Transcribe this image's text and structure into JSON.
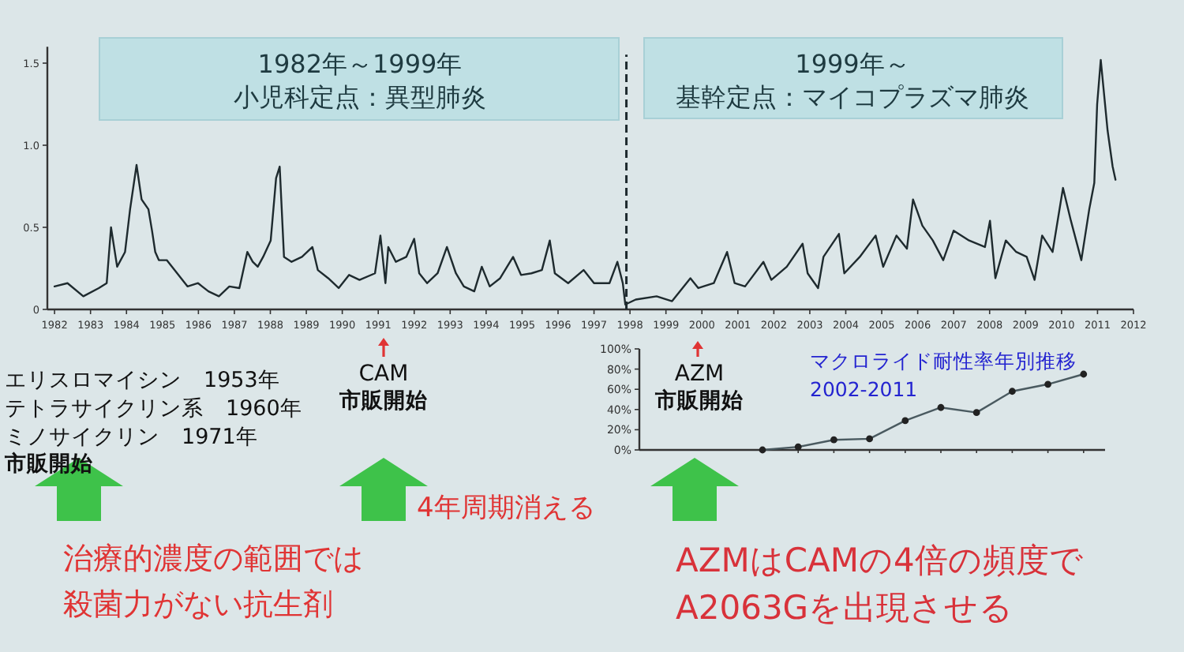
{
  "chart_data": [
    {
      "type": "line",
      "color": "#1e2a2e",
      "line_style": "solid",
      "x": [
        1982.5,
        1982.86,
        1983.3,
        1983.73,
        1983.95,
        1984.07,
        1984.24,
        1984.46,
        1984.6,
        1984.78,
        1984.92,
        1985.11,
        1985.21,
        1985.3,
        1985.4,
        1985.62,
        1985.91,
        1986.2,
        1986.49,
        1986.78,
        1987.07,
        1987.36,
        1987.64,
        1987.86,
        1988.01,
        1988.15,
        1988.3,
        1988.51,
        1988.66,
        1988.76,
        1988.88,
        1989.09,
        1989.38,
        1989.67,
        1989.82,
        1990.11,
        1990.4,
        1990.69,
        1990.98,
        1991.41,
        1991.56,
        1991.7,
        1991.78,
        1991.99,
        1992.28,
        1992.5,
        1992.64,
        1992.86,
        1993.15,
        1993.41,
        1993.66,
        1993.88,
        1994.17,
        1994.38,
        1994.6,
        1994.89,
        1995.25,
        1995.47,
        1995.76,
        1996.05,
        1996.27,
        1996.41,
        1996.78,
        1997.21,
        1997.5,
        1997.93,
        1998.15,
        1998.3,
        1998.37,
        1998.66,
        1999.24,
        1999.67,
        2000.18,
        2000.4,
        2000.83,
        2001.2,
        2001.41,
        2001.7,
        2002.21,
        2002.43,
        2002.86,
        2003.3,
        2003.44,
        2003.73,
        2003.88,
        2004.31,
        2004.46,
        2004.89,
        2005.33,
        2005.54,
        2005.91,
        2006.2,
        2006.37,
        2006.63,
        2006.92,
        2007.21,
        2007.5,
        2007.93,
        2008.37,
        2008.51,
        2008.66,
        2008.95,
        2009.24,
        2009.53,
        2009.75,
        2009.96,
        2010.25,
        2010.54,
        2010.76,
        2011.05,
        2011.27,
        2011.41,
        2011.49,
        2011.59,
        2011.78,
        2011.92,
        2012.0
      ],
      "values": [
        0.14,
        0.16,
        0.08,
        0.13,
        0.16,
        0.5,
        0.26,
        0.35,
        0.61,
        0.88,
        0.67,
        0.61,
        0.48,
        0.35,
        0.3,
        0.3,
        0.22,
        0.14,
        0.16,
        0.11,
        0.08,
        0.14,
        0.13,
        0.35,
        0.29,
        0.26,
        0.32,
        0.42,
        0.8,
        0.87,
        0.32,
        0.29,
        0.32,
        0.38,
        0.24,
        0.19,
        0.13,
        0.21,
        0.18,
        0.22,
        0.45,
        0.16,
        0.38,
        0.29,
        0.32,
        0.43,
        0.22,
        0.16,
        0.22,
        0.38,
        0.22,
        0.14,
        0.11,
        0.26,
        0.14,
        0.19,
        0.32,
        0.21,
        0.22,
        0.24,
        0.42,
        0.22,
        0.16,
        0.24,
        0.16,
        0.16,
        0.29,
        0.16,
        0.03,
        0.06,
        0.08,
        0.05,
        0.19,
        0.13,
        0.16,
        0.35,
        0.16,
        0.14,
        0.29,
        0.18,
        0.26,
        0.4,
        0.22,
        0.13,
        0.32,
        0.46,
        0.22,
        0.32,
        0.45,
        0.26,
        0.45,
        0.37,
        0.67,
        0.51,
        0.42,
        0.3,
        0.48,
        0.42,
        0.38,
        0.54,
        0.19,
        0.42,
        0.35,
        0.32,
        0.18,
        0.45,
        0.35,
        0.74,
        0.54,
        0.3,
        0.61,
        0.77,
        1.25,
        1.52,
        1.09,
        0.87,
        0.79
      ],
      "xlim": [
        1982.3,
        2012.5
      ],
      "ylim": [
        0,
        1.6
      ],
      "xticks": [
        {
          "value": 1982.5,
          "label": "1982"
        },
        {
          "value": 1983.5,
          "label": "1983"
        },
        {
          "value": 1984.5,
          "label": "1984"
        },
        {
          "value": 1985.5,
          "label": "1985"
        },
        {
          "value": 1986.5,
          "label": "1986"
        },
        {
          "value": 1987.5,
          "label": "1987"
        },
        {
          "value": 1988.5,
          "label": "1988"
        },
        {
          "value": 1989.5,
          "label": "1989"
        },
        {
          "value": 1990.5,
          "label": "1990"
        },
        {
          "value": 1991.5,
          "label": "1991"
        },
        {
          "value": 1992.5,
          "label": "1992"
        },
        {
          "value": 1993.5,
          "label": "1993"
        },
        {
          "value": 1994.5,
          "label": "1994"
        },
        {
          "value": 1995.5,
          "label": "1995"
        },
        {
          "value": 1996.5,
          "label": "1996"
        },
        {
          "value": 1997.5,
          "label": "1997"
        },
        {
          "value": 1998.5,
          "label": "1998"
        },
        {
          "value": 1999.5,
          "label": "1999"
        },
        {
          "value": 2000.5,
          "label": "2000"
        },
        {
          "value": 2001.5,
          "label": "2001"
        },
        {
          "value": 2002.5,
          "label": "2002"
        },
        {
          "value": 2003.5,
          "label": "2003"
        },
        {
          "value": 2004.5,
          "label": "2004"
        },
        {
          "value": 2005.5,
          "label": "2005"
        },
        {
          "value": 2006.5,
          "label": "2006"
        },
        {
          "value": 2007.5,
          "label": "2007"
        },
        {
          "value": 2008.5,
          "label": "2008"
        },
        {
          "value": 2009.5,
          "label": "2009"
        },
        {
          "value": 2010.5,
          "label": "2010"
        },
        {
          "value": 2011.5,
          "label": "2011"
        },
        {
          "value": 2012.5,
          "label": "2012"
        }
      ],
      "yticks": [
        0,
        0.5,
        {
          "value": 1.0,
          "label": "1.0"
        },
        1.5
      ],
      "ref_lines": [
        {
          "axis": "x",
          "value": 1998.4,
          "line_style": "dashed",
          "color": "#1e2a2e"
        }
      ],
      "annotations": [
        "1982年～1999年",
        "小児科定点：異型肺炎",
        "1999年～",
        "基幹定点：マイコプラズマ肺炎",
        "エリスロマイシン　1953年",
        "テトラサイクリン系　1960年",
        "ミノサイクリン　1971年",
        "市販開始",
        "CAM",
        "市販開始",
        "AZM",
        "市販開始",
        "4年周期消える",
        "治療的濃度の範囲では",
        "殺菌力がない抗生剤",
        "AZMはCAMの4倍の頻度で",
        "A2063Gを出現させる"
      ]
    },
    {
      "type": "line",
      "title": "マクロライド耐性率年別推移",
      "subtitle": "2002-2011",
      "color": "#4a5a60",
      "marker": "circle",
      "categories": [
        null,
        null,
        null,
        null,
        null,
        null,
        null,
        null,
        null,
        null
      ],
      "values": [
        0,
        3,
        10,
        11,
        29,
        42,
        37,
        58,
        65,
        75
      ],
      "ylim": [
        0,
        100
      ],
      "yticks": [
        {
          "value": 0,
          "label": "0%"
        },
        {
          "value": 20,
          "label": "20%"
        },
        {
          "value": 40,
          "label": "40%"
        },
        {
          "value": 60,
          "label": "60%"
        },
        {
          "value": 80,
          "label": "80%"
        },
        {
          "value": 100,
          "label": "100%"
        }
      ],
      "tick_labels": "y"
    }
  ]
}
